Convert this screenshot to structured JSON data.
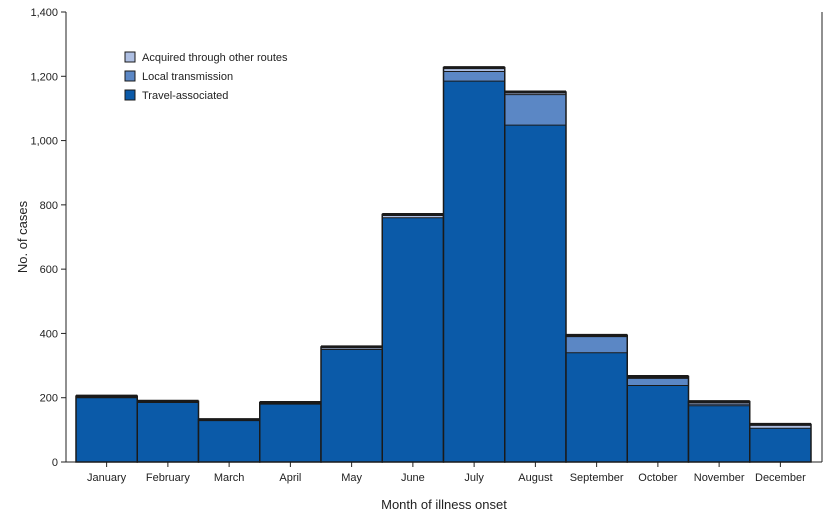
{
  "chart_data": {
    "type": "bar",
    "stacked": true,
    "categories": [
      "January",
      "February",
      "March",
      "April",
      "May",
      "June",
      "July",
      "August",
      "September",
      "October",
      "November",
      "December"
    ],
    "series": [
      {
        "name": "Travel-associated",
        "color": "#0b5aa8",
        "values": [
          200,
          185,
          130,
          180,
          350,
          760,
          1185,
          1048,
          340,
          238,
          175,
          105
        ]
      },
      {
        "name": "Local transmission",
        "color": "#5b87c5",
        "values": [
          0,
          0,
          0,
          0,
          0,
          0,
          30,
          95,
          50,
          22,
          5,
          0
        ]
      },
      {
        "name": "Acquired through other routes",
        "color": "#aebfe2",
        "values": [
          5,
          4,
          2,
          5,
          8,
          10,
          12,
          8,
          4,
          6,
          8,
          12
        ]
      }
    ],
    "xlabel": "Month of illness onset",
    "ylabel": "No. of cases",
    "ylim": [
      0,
      1400
    ],
    "yticks": [
      0,
      200,
      400,
      600,
      800,
      1000,
      1200,
      1400
    ],
    "ytick_labels": [
      "0",
      "200",
      "400",
      "600",
      "800",
      "1,000",
      "1,200",
      "1,400"
    ],
    "legend_order": [
      "Acquired through other routes",
      "Local transmission",
      "Travel-associated"
    ],
    "legend_position": "top-left",
    "grid": false
  }
}
